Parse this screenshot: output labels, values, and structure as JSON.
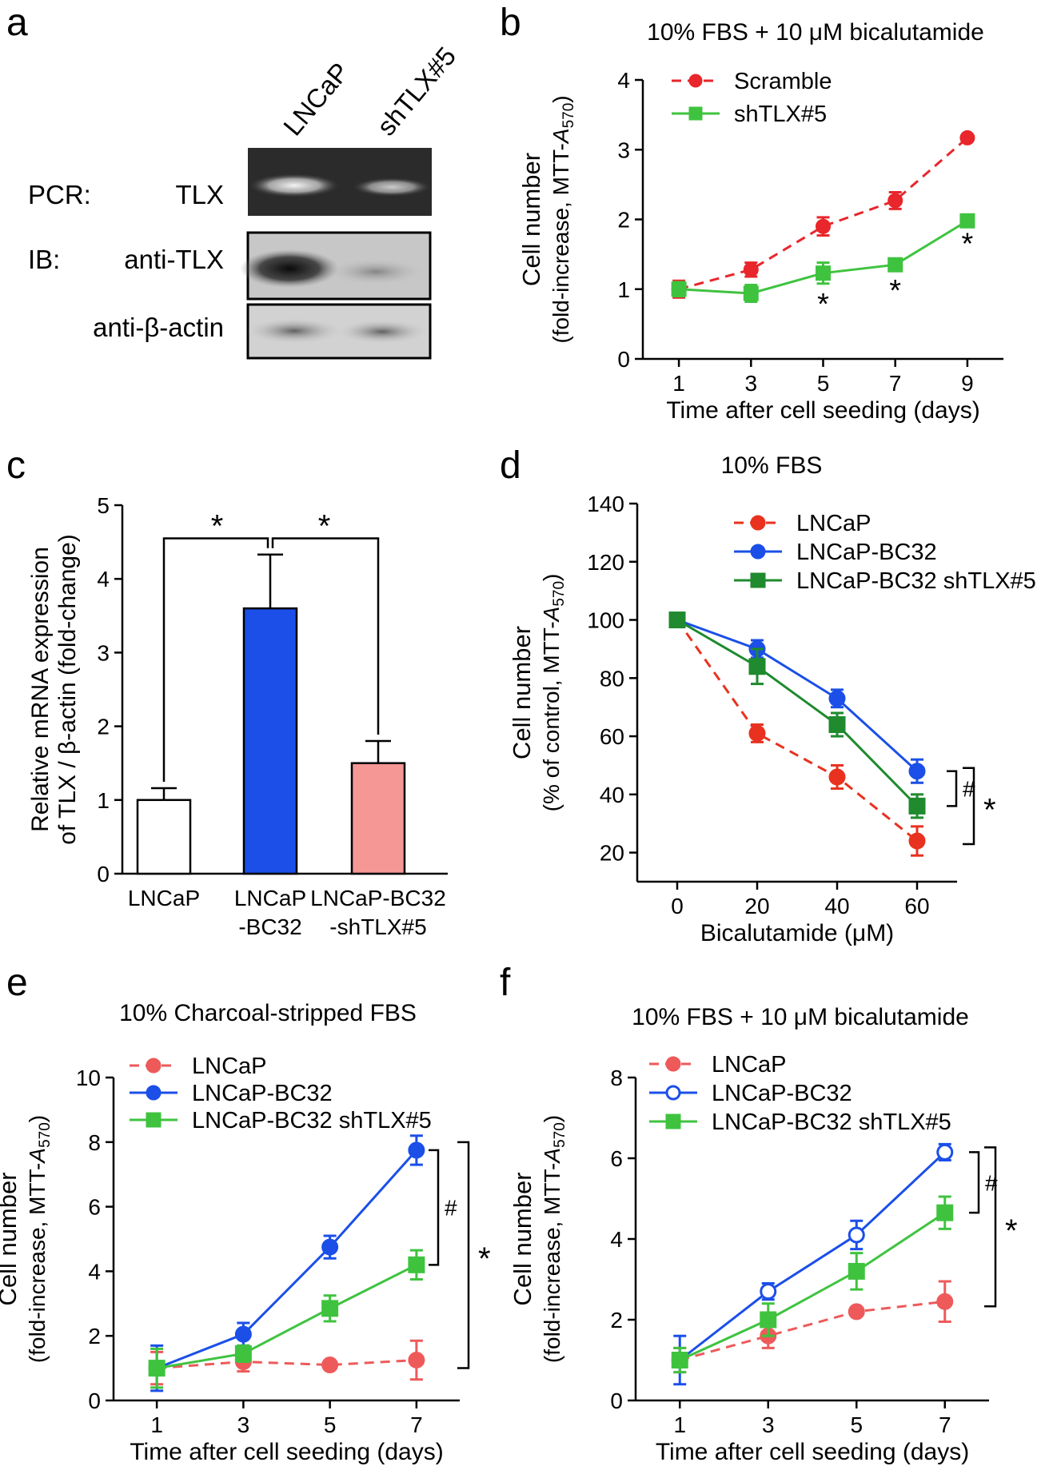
{
  "panel_letters": {
    "a": "a",
    "b": "b",
    "c": "c",
    "d": "d",
    "e": "e",
    "f": "f"
  },
  "panel_a": {
    "lanes": [
      "LNCaP",
      "shTLX#5"
    ],
    "rows": [
      {
        "prefix": "PCR:",
        "label": "TLX"
      },
      {
        "prefix": "IB:",
        "label": "anti-TLX"
      },
      {
        "prefix": "",
        "label": "anti-β-actin"
      }
    ]
  },
  "chart_data": [
    {
      "id": "b",
      "type": "line",
      "title": "10% FBS + 10 μM bicalutamide",
      "xlabel": "Time after cell seeding (days)",
      "ylabel_line1": "Cell number",
      "ylabel_line2": "(fold-increase, MTT-A570)",
      "ylabel_line2_text": "(fold-increase, MTT-",
      "ylabel_A": "A",
      "ylabel_sub": "570",
      "ylabel_close": ")",
      "x": [
        1,
        3,
        5,
        7,
        9
      ],
      "xlim": [
        0,
        10
      ],
      "xticks": [
        1,
        3,
        5,
        7,
        9
      ],
      "ylim": [
        0,
        4
      ],
      "yticks": [
        0,
        1,
        2,
        3,
        4
      ],
      "series": [
        {
          "name": "Scramble",
          "color": "#e8262b",
          "dashed": true,
          "marker": "circle",
          "filled": true,
          "values": [
            1.0,
            1.28,
            1.9,
            2.27,
            3.17
          ],
          "errors": [
            0.12,
            0.1,
            0.13,
            0.12,
            0.04
          ]
        },
        {
          "name": "shTLX#5",
          "color": "#3fc33f",
          "dashed": false,
          "marker": "square",
          "filled": true,
          "values": [
            1.0,
            0.94,
            1.23,
            1.35,
            1.98
          ],
          "errors": [
            0.1,
            0.12,
            0.15,
            0.08,
            0.04
          ]
        }
      ],
      "annotations": [
        {
          "label": "*",
          "x": 5
        },
        {
          "label": "*",
          "x": 7
        },
        {
          "label": "*",
          "x": 9
        }
      ]
    },
    {
      "id": "c",
      "type": "bar",
      "ylabel_line1": "Relative mRNA expression",
      "ylabel_line2": "of TLX / β-actin (fold-change)",
      "categories": [
        [
          "LNCaP"
        ],
        [
          "LNCaP",
          "-BC32"
        ],
        [
          "LNCaP-BC32",
          "-shTLX#5"
        ]
      ],
      "values": [
        1.0,
        3.6,
        1.5
      ],
      "errors": [
        0.16,
        0.73,
        0.3
      ],
      "colors": [
        "#ffffff",
        "#1b4fe8",
        "#f49795"
      ],
      "ylim": [
        0,
        5
      ],
      "yticks": [
        0,
        1,
        2,
        3,
        4,
        5
      ],
      "significance": [
        "*",
        "*"
      ]
    },
    {
      "id": "d",
      "type": "line",
      "title": "10% FBS",
      "xlabel": "Bicalutamide (μM)",
      "ylabel_line1": "Cell number",
      "ylabel_line2_text": "(% of control, MTT-",
      "ylabel_A": "A",
      "ylabel_sub": "570",
      "ylabel_close": ")",
      "x": [
        0,
        20,
        40,
        60
      ],
      "xlim": [
        -10,
        70
      ],
      "xticks": [
        0,
        20,
        40,
        60
      ],
      "ylim": [
        10,
        140
      ],
      "yticks": [
        20,
        40,
        60,
        80,
        100,
        120,
        140
      ],
      "series": [
        {
          "name": "LNCaP",
          "color": "#e8321f",
          "dashed": true,
          "marker": "circle",
          "filled": true,
          "values": [
            100,
            61,
            46,
            24
          ],
          "errors": [
            2,
            3,
            4,
            5
          ]
        },
        {
          "name": "LNCaP-BC32",
          "color": "#1b4fe8",
          "dashed": false,
          "marker": "circle",
          "filled": true,
          "values": [
            100,
            90,
            73,
            48
          ],
          "errors": [
            2,
            3,
            3,
            4
          ]
        },
        {
          "name": "LNCaP-BC32 shTLX#5",
          "color": "#1f8a2e",
          "dashed": false,
          "marker": "square",
          "filled": true,
          "values": [
            100,
            84,
            64,
            36
          ],
          "errors": [
            2,
            6,
            4,
            4
          ]
        }
      ],
      "brackets": [
        "#",
        "*"
      ]
    },
    {
      "id": "e",
      "type": "line",
      "title": "10% Charcoal-stripped FBS",
      "xlabel": "Time after cell seeding (days)",
      "ylabel_line1": "Cell number",
      "ylabel_line2_text": "(fold-increase, MTT-",
      "ylabel_A": "A",
      "ylabel_sub": "570",
      "ylabel_close": ")",
      "x": [
        1,
        3,
        5,
        7
      ],
      "xlim": [
        0,
        8
      ],
      "xticks": [
        1,
        3,
        5,
        7
      ],
      "ylim": [
        0,
        10
      ],
      "yticks": [
        0,
        2,
        4,
        6,
        8,
        10
      ],
      "series": [
        {
          "name": "LNCaP",
          "color": "#ee5a5a",
          "dashed": true,
          "marker": "circle",
          "filled": true,
          "values": [
            1.0,
            1.2,
            1.1,
            1.25
          ],
          "errors": [
            0.5,
            0.3,
            0.1,
            0.6
          ]
        },
        {
          "name": "LNCaP-BC32",
          "color": "#1b4fe8",
          "dashed": false,
          "marker": "circle",
          "filled": true,
          "values": [
            1.0,
            2.05,
            4.75,
            7.75
          ],
          "errors": [
            0.7,
            0.35,
            0.35,
            0.45
          ]
        },
        {
          "name": "LNCaP-BC32 shTLX#5",
          "color": "#3fc33f",
          "dashed": false,
          "marker": "square",
          "filled": true,
          "values": [
            1.0,
            1.45,
            2.85,
            4.2
          ],
          "errors": [
            0.6,
            0.25,
            0.4,
            0.45
          ]
        }
      ],
      "brackets": [
        "#",
        "*"
      ]
    },
    {
      "id": "f",
      "type": "line",
      "title": "10% FBS + 10 μM bicalutamide",
      "xlabel": "Time after cell seeding (days)",
      "ylabel_line1": "Cell number",
      "ylabel_line2_text": "(fold-increase, MTT-",
      "ylabel_A": "A",
      "ylabel_sub": "570",
      "ylabel_close": ")",
      "x": [
        1,
        3,
        5,
        7
      ],
      "xlim": [
        0,
        8
      ],
      "xticks": [
        1,
        3,
        5,
        7
      ],
      "ylim": [
        0,
        8
      ],
      "yticks": [
        0,
        2,
        4,
        6,
        8
      ],
      "series": [
        {
          "name": "LNCaP",
          "color": "#ee5a5a",
          "dashed": true,
          "marker": "circle",
          "filled": true,
          "values": [
            1.0,
            1.6,
            2.2,
            2.45
          ],
          "errors": [
            0.3,
            0.3,
            0.05,
            0.5
          ]
        },
        {
          "name": "LNCaP-BC32",
          "color": "#1b4fe8",
          "dashed": false,
          "marker": "circle",
          "filled": false,
          "values": [
            1.0,
            2.7,
            4.1,
            6.15
          ],
          "errors": [
            0.6,
            0.2,
            0.35,
            0.2
          ]
        },
        {
          "name": "LNCaP-BC32 shTLX#5",
          "color": "#3fc33f",
          "dashed": false,
          "marker": "square",
          "filled": true,
          "values": [
            1.0,
            2.0,
            3.2,
            4.65
          ],
          "errors": [
            0.3,
            0.4,
            0.45,
            0.4
          ]
        }
      ],
      "brackets": [
        "#",
        "*"
      ]
    }
  ]
}
